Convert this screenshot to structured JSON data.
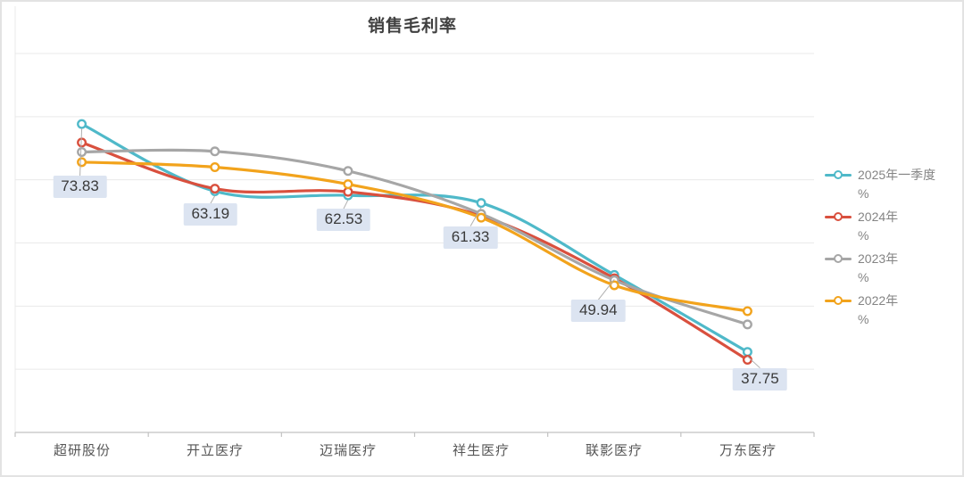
{
  "title": "销售毛利率",
  "chart_data": {
    "type": "line",
    "smooth": true,
    "marker": "circle",
    "grid": true,
    "legend_position": "right",
    "ylim": [
      25,
      85
    ],
    "grid_step": 10,
    "categories": [
      "超研股份",
      "开立医疗",
      "迈瑞医疗",
      "祥生医疗",
      "联影医疗",
      "万东医疗"
    ],
    "series": [
      {
        "name": "2025年一季度",
        "legend_suffix": "%",
        "color": "#4FB9C9",
        "values": [
          73.83,
          63.19,
          62.53,
          61.33,
          49.94,
          37.75
        ]
      },
      {
        "name": "2024年",
        "legend_suffix": "%",
        "color": "#D9503E",
        "values": [
          70.9,
          63.6,
          63.1,
          59.3,
          49.4,
          36.5
        ]
      },
      {
        "name": "2023年",
        "legend_suffix": "%",
        "color": "#A6A6A6",
        "values": [
          69.4,
          69.5,
          66.4,
          59.6,
          49.1,
          42.1
        ]
      },
      {
        "name": "2022年",
        "legend_suffix": "%",
        "color": "#F2A31C",
        "values": [
          67.8,
          67.0,
          64.3,
          59.0,
          48.3,
          44.2
        ]
      }
    ],
    "point_labels": [
      {
        "series": 0,
        "point": 0,
        "text": "73.83"
      },
      {
        "series": 0,
        "point": 1,
        "text": "63.19"
      },
      {
        "series": 0,
        "point": 2,
        "text": "62.53"
      },
      {
        "series": 0,
        "point": 3,
        "text": "61.33"
      },
      {
        "series": 0,
        "point": 4,
        "text": "49.94"
      },
      {
        "series": 0,
        "point": 5,
        "text": "37.75"
      }
    ],
    "colors": {
      "grid": "#EAEAEA",
      "axis": "#C2C2C2",
      "label_bg": "#DCE4F1",
      "title_text": "#404040",
      "axis_text": "#565656",
      "legend_text": "#848484",
      "leader": "#AFAFAF"
    }
  }
}
